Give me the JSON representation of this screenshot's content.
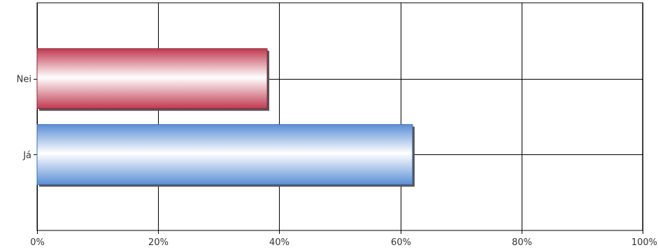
{
  "chart_data": {
    "type": "bar",
    "orientation": "horizontal",
    "categories": [
      "Nei",
      "Já"
    ],
    "values": [
      38,
      62
    ],
    "value_unit": "%",
    "xlim": [
      0,
      100
    ],
    "xticks": [
      0,
      20,
      40,
      60,
      80,
      100
    ],
    "xtick_labels": [
      "0%",
      "20%",
      "40%",
      "60%",
      "80%",
      "100%"
    ],
    "grid": true,
    "legend": "none",
    "bar_colors": [
      "#c0394f",
      "#5b8fd6"
    ],
    "title": "",
    "xlabel": "",
    "ylabel": ""
  }
}
